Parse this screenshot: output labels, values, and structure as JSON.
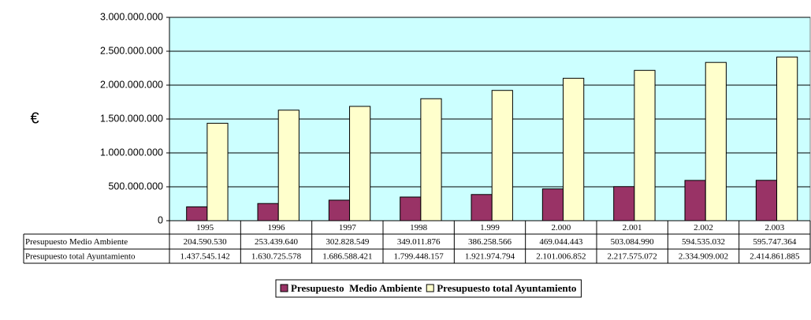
{
  "chart_data": {
    "type": "bar",
    "ylabel": "€",
    "categories": [
      "1995",
      "1996",
      "1997",
      "1998",
      "1.999",
      "2.000",
      "2.001",
      "2.002",
      "2.003"
    ],
    "series": [
      {
        "name": "Presupuesto  Medio Ambiente",
        "color": "#993366",
        "values": [
          204590530,
          253439640,
          302828549,
          349011876,
          386258566,
          469044443,
          503084990,
          594535032,
          595747364
        ],
        "value_labels": [
          "204.590.530",
          "253.439.640",
          "302.828.549",
          "349.011.876",
          "386.258.566",
          "469.044.443",
          "503.084.990",
          "594.535.032",
          "595.747.364"
        ]
      },
      {
        "name": "Presupuesto total Ayuntamiento",
        "color": "#ffffcc",
        "values": [
          1437545142,
          1630725578,
          1686588421,
          1799448157,
          1921974794,
          2101006852,
          2217575072,
          2334909002,
          2414861885
        ],
        "value_labels": [
          "1.437.545.142",
          "1.630.725.578",
          "1.686.588.421",
          "1.799.448.157",
          "1.921.974.794",
          "2.101.006.852",
          "2.217.575.072",
          "2.334.909.002",
          "2.414.861.885"
        ]
      }
    ],
    "ylim": [
      0,
      3000000000
    ],
    "yticks": [
      0,
      {
        "value": 500000000,
        "label": "500.000.000"
      },
      {
        "value": 1000000000,
        "label": "1.000.000.000"
      },
      {
        "value": 1500000000,
        "label": "1.500.000.000"
      },
      {
        "value": 2000000000,
        "label": "2.000.000.000"
      },
      {
        "value": 2500000000,
        "label": "2.500.000.000"
      },
      {
        "value": 3000000000,
        "label": "3.000.000.000"
      }
    ],
    "grid": true,
    "plot_background": "#ccffff",
    "legend": "bottom"
  }
}
